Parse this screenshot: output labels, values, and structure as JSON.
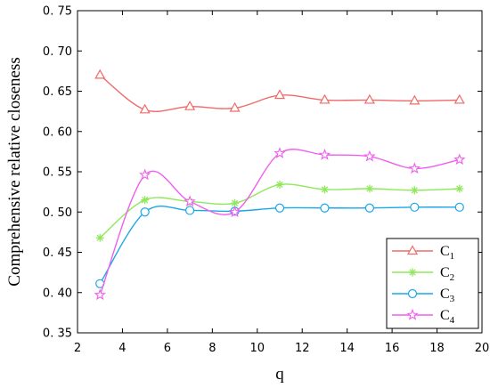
{
  "chart_data": {
    "type": "line",
    "xlabel": "q",
    "ylabel": "Comprehensive relative closeness",
    "xlim": [
      2,
      20
    ],
    "ylim": [
      0.35,
      0.75
    ],
    "x_ticks": [
      2,
      4,
      6,
      8,
      10,
      12,
      14,
      16,
      18,
      20
    ],
    "y_ticks": [
      0.35,
      0.4,
      0.45,
      0.5,
      0.55,
      0.6,
      0.65,
      0.7,
      0.75
    ],
    "y_tick_labels": [
      "0. 35",
      "0. 40",
      "0. 45",
      "0. 50",
      "0. 55",
      "0. 60",
      "0. 65",
      "0. 70",
      "0. 75"
    ],
    "x": [
      3,
      5,
      7,
      9,
      11,
      13,
      15,
      17,
      19
    ],
    "grid": false,
    "legend_position": "bottom-right",
    "series": [
      {
        "name": "C",
        "subscript": "1",
        "color": "#f06a6a",
        "marker": "triangle",
        "values": [
          0.67,
          0.627,
          0.631,
          0.629,
          0.645,
          0.639,
          0.639,
          0.638,
          0.639
        ]
      },
      {
        "name": "C",
        "subscript": "2",
        "color": "#8fe85a",
        "marker": "asterisk",
        "values": [
          0.468,
          0.515,
          0.513,
          0.511,
          0.534,
          0.528,
          0.529,
          0.527,
          0.529
        ]
      },
      {
        "name": "C",
        "subscript": "3",
        "color": "#1aa7e8",
        "marker": "circle",
        "values": [
          0.411,
          0.5,
          0.502,
          0.501,
          0.505,
          0.505,
          0.505,
          0.506,
          0.506
        ]
      },
      {
        "name": "C",
        "subscript": "4",
        "color": "#ef5fef",
        "marker": "star",
        "values": [
          0.397,
          0.546,
          0.513,
          0.5,
          0.573,
          0.571,
          0.569,
          0.554,
          0.565
        ]
      }
    ]
  }
}
